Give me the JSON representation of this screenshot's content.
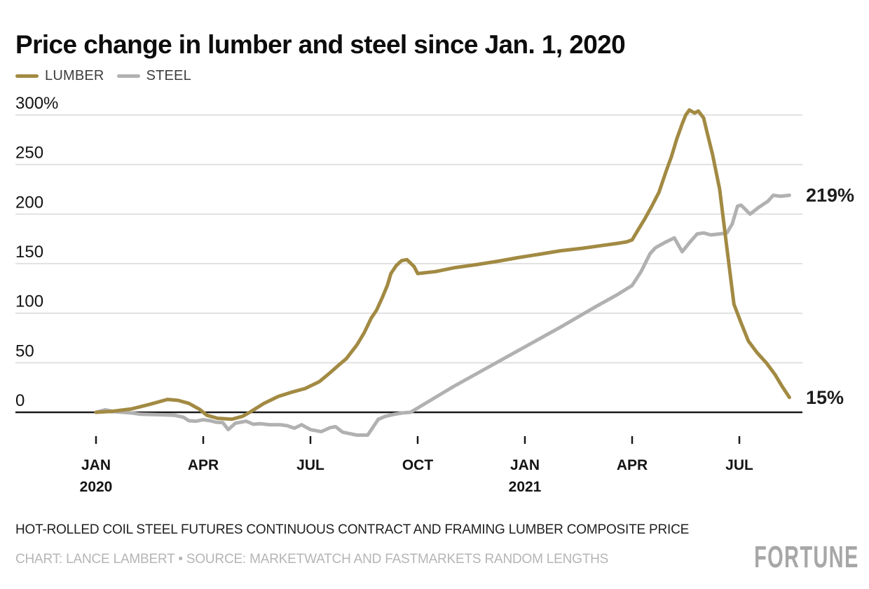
{
  "title": "Price change in lumber and steel since Jan. 1, 2020",
  "legend": [
    {
      "label": "LUMBER",
      "color": "#a28a43"
    },
    {
      "label": "STEEL",
      "color": "#b1b1b1"
    }
  ],
  "footnote": "HOT-ROLLED COIL STEEL FUTURES CONTINUOUS CONTRACT AND FRAMING LUMBER COMPOSITE PRICE",
  "credit": "CHART: LANCE LAMBERT • SOURCE: MARKETWATCH AND FASTMARKETS RANDOM LENGTHS",
  "brand": "FORTUNE",
  "chart_data": {
    "type": "line",
    "title": "Price change in lumber and steel since Jan. 1, 2020",
    "x_unit": "months since Jan 1, 2020",
    "y_unit": "percent change",
    "xlim": [
      0,
      19.75
    ],
    "ylim": [
      -30,
      310
    ],
    "grid": true,
    "legend_position": "top-left",
    "colors": {
      "axis": "#1a1a1a",
      "grid": "#d9d9d9",
      "lumber": "#a28a43",
      "steel": "#b1b1b1"
    },
    "yticks": [
      {
        "value": 300,
        "label": "300%"
      },
      {
        "value": 250,
        "label": "250"
      },
      {
        "value": 200,
        "label": "200"
      },
      {
        "value": 150,
        "label": "150"
      },
      {
        "value": 100,
        "label": "100"
      },
      {
        "value": 50,
        "label": "50"
      },
      {
        "value": 0,
        "label": "0"
      }
    ],
    "xticks": [
      {
        "x": 0,
        "label": "JAN",
        "sublabel": "2020"
      },
      {
        "x": 3,
        "label": "APR",
        "sublabel": ""
      },
      {
        "x": 6,
        "label": "JUL",
        "sublabel": ""
      },
      {
        "x": 9,
        "label": "OCT",
        "sublabel": ""
      },
      {
        "x": 12,
        "label": "JAN",
        "sublabel": "2021"
      },
      {
        "x": 15,
        "label": "APR",
        "sublabel": ""
      },
      {
        "x": 18,
        "label": "JUL",
        "sublabel": ""
      }
    ],
    "series": [
      {
        "name": "STEEL",
        "color": "#b1b1b1",
        "end_label": "219%",
        "end_value": 219,
        "points": [
          [
            0,
            0
          ],
          [
            0.25,
            2.5
          ],
          [
            0.55,
            0.5
          ],
          [
            0.95,
            -0.5
          ],
          [
            1.25,
            -2
          ],
          [
            1.8,
            -2.5
          ],
          [
            2.2,
            -3
          ],
          [
            2.45,
            -5
          ],
          [
            2.6,
            -8.5
          ],
          [
            2.8,
            -9
          ],
          [
            3.0,
            -7.5
          ],
          [
            3.2,
            -8.5
          ],
          [
            3.35,
            -10
          ],
          [
            3.55,
            -10.5
          ],
          [
            3.7,
            -17.5
          ],
          [
            3.9,
            -11
          ],
          [
            4.2,
            -9
          ],
          [
            4.4,
            -12
          ],
          [
            4.6,
            -11.5
          ],
          [
            4.85,
            -12.5
          ],
          [
            5.15,
            -12.5
          ],
          [
            5.35,
            -13.5
          ],
          [
            5.55,
            -16
          ],
          [
            5.75,
            -12.5
          ],
          [
            6.0,
            -17.5
          ],
          [
            6.3,
            -19.5
          ],
          [
            6.55,
            -15.5
          ],
          [
            6.7,
            -14.5
          ],
          [
            6.9,
            -20
          ],
          [
            7.1,
            -21.5
          ],
          [
            7.3,
            -23
          ],
          [
            7.6,
            -23
          ],
          [
            7.9,
            -7
          ],
          [
            8.1,
            -4
          ],
          [
            8.35,
            -2
          ],
          [
            8.6,
            -0.5
          ],
          [
            8.8,
            0
          ],
          [
            10.0,
            26
          ],
          [
            11.0,
            46
          ],
          [
            12.0,
            66
          ],
          [
            13.0,
            86
          ],
          [
            14.0,
            107
          ],
          [
            14.6,
            119
          ],
          [
            15.0,
            128
          ],
          [
            15.25,
            142
          ],
          [
            15.5,
            160
          ],
          [
            15.65,
            166
          ],
          [
            15.9,
            171
          ],
          [
            16.18,
            176
          ],
          [
            16.4,
            162
          ],
          [
            16.6,
            171
          ],
          [
            16.82,
            180
          ],
          [
            17.0,
            181
          ],
          [
            17.2,
            179
          ],
          [
            17.45,
            180
          ],
          [
            17.65,
            181
          ],
          [
            17.8,
            190
          ],
          [
            17.95,
            208
          ],
          [
            18.05,
            209
          ],
          [
            18.3,
            200
          ],
          [
            18.55,
            207
          ],
          [
            18.8,
            213
          ],
          [
            18.95,
            219
          ],
          [
            19.15,
            218
          ],
          [
            19.4,
            219
          ]
        ]
      },
      {
        "name": "LUMBER",
        "color": "#a28a43",
        "end_label": "15%",
        "end_value": 15,
        "points": [
          [
            0,
            0
          ],
          [
            0.45,
            1
          ],
          [
            1.0,
            3.5
          ],
          [
            1.5,
            8
          ],
          [
            2.0,
            13
          ],
          [
            2.3,
            12
          ],
          [
            2.6,
            9
          ],
          [
            2.9,
            3
          ],
          [
            3.1,
            -3
          ],
          [
            3.4,
            -6
          ],
          [
            3.8,
            -7
          ],
          [
            4.1,
            -4
          ],
          [
            4.3,
            0
          ],
          [
            4.7,
            9
          ],
          [
            5.1,
            16
          ],
          [
            5.45,
            20
          ],
          [
            5.85,
            24
          ],
          [
            6.25,
            31
          ],
          [
            6.55,
            40
          ],
          [
            6.8,
            48
          ],
          [
            7.0,
            54
          ],
          [
            7.3,
            68
          ],
          [
            7.5,
            80
          ],
          [
            7.7,
            95
          ],
          [
            7.85,
            103
          ],
          [
            8.0,
            115
          ],
          [
            8.15,
            128
          ],
          [
            8.25,
            140
          ],
          [
            8.4,
            148
          ],
          [
            8.55,
            153
          ],
          [
            8.7,
            154
          ],
          [
            8.9,
            147
          ],
          [
            9.0,
            140
          ],
          [
            9.5,
            142
          ],
          [
            10.05,
            146
          ],
          [
            10.65,
            149
          ],
          [
            11.25,
            152.5
          ],
          [
            11.8,
            156
          ],
          [
            12.4,
            159.5
          ],
          [
            13.0,
            163
          ],
          [
            13.6,
            165.5
          ],
          [
            14.2,
            168.5
          ],
          [
            14.6,
            170.5
          ],
          [
            14.85,
            172
          ],
          [
            15.0,
            174
          ],
          [
            15.15,
            183
          ],
          [
            15.35,
            195
          ],
          [
            15.55,
            208
          ],
          [
            15.75,
            222
          ],
          [
            15.95,
            243
          ],
          [
            16.1,
            258
          ],
          [
            16.25,
            276
          ],
          [
            16.4,
            291
          ],
          [
            16.5,
            300
          ],
          [
            16.6,
            305
          ],
          [
            16.75,
            302
          ],
          [
            16.85,
            304
          ],
          [
            17.0,
            297
          ],
          [
            17.1,
            282
          ],
          [
            17.25,
            260
          ],
          [
            17.45,
            225
          ],
          [
            17.65,
            166
          ],
          [
            17.85,
            109
          ],
          [
            18.05,
            90
          ],
          [
            18.25,
            72
          ],
          [
            18.5,
            60
          ],
          [
            18.75,
            50
          ],
          [
            19.0,
            38
          ],
          [
            19.2,
            26
          ],
          [
            19.4,
            15
          ]
        ]
      }
    ]
  }
}
